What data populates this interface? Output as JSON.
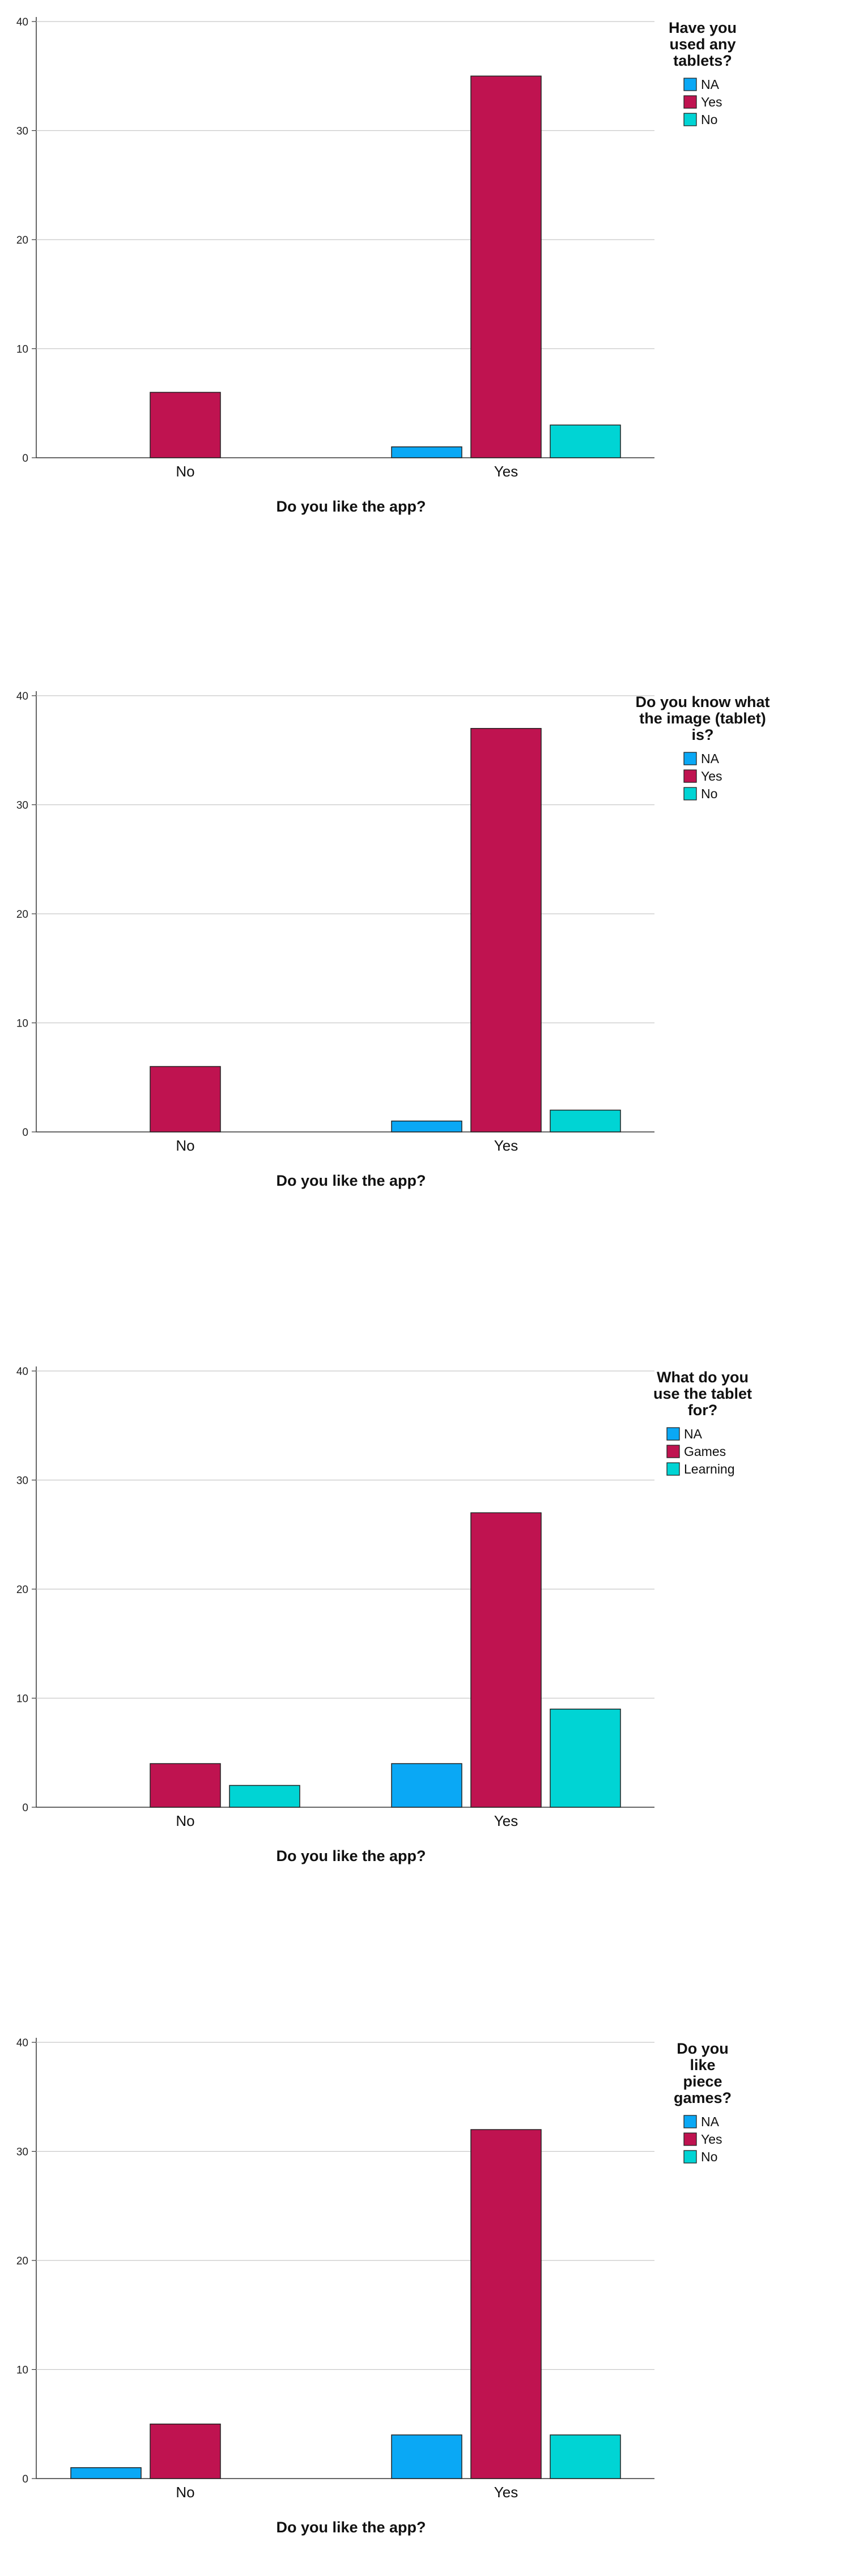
{
  "chart_data": [
    {
      "type": "bar",
      "xlabel": "Do you like the app?",
      "categories": [
        "No",
        "Yes"
      ],
      "ylim": [
        0,
        40
      ],
      "yticks": [
        0,
        10,
        20,
        30,
        40
      ],
      "grid": true,
      "legend_position": "top-right",
      "legend_title_lines": [
        "Have you",
        "used any",
        "tablets?"
      ],
      "series": [
        {
          "name": "NA",
          "color": "#0aa8f5",
          "values": [
            0,
            1
          ]
        },
        {
          "name": "Yes",
          "color": "#bf1350",
          "values": [
            6,
            35
          ]
        },
        {
          "name": "No",
          "color": "#00d4d4",
          "values": [
            0,
            3
          ]
        }
      ]
    },
    {
      "type": "bar",
      "xlabel": "Do you like the app?",
      "categories": [
        "No",
        "Yes"
      ],
      "ylim": [
        0,
        40
      ],
      "yticks": [
        0,
        10,
        20,
        30,
        40
      ],
      "grid": true,
      "legend_position": "top-right",
      "legend_title_lines": [
        "Do you know what",
        "the image (tablet)",
        "is?"
      ],
      "series": [
        {
          "name": "NA",
          "color": "#0aa8f5",
          "values": [
            0,
            1
          ]
        },
        {
          "name": "Yes",
          "color": "#bf1350",
          "values": [
            6,
            37
          ]
        },
        {
          "name": "No",
          "color": "#00d4d4",
          "values": [
            0,
            2
          ]
        }
      ]
    },
    {
      "type": "bar",
      "xlabel": "Do you like the app?",
      "categories": [
        "No",
        "Yes"
      ],
      "ylim": [
        0,
        40
      ],
      "yticks": [
        0,
        10,
        20,
        30,
        40
      ],
      "grid": true,
      "legend_position": "top-right",
      "legend_title_lines": [
        "What do you",
        "use the tablet",
        "for?"
      ],
      "series": [
        {
          "name": "NA",
          "color": "#0aa8f5",
          "values": [
            0,
            4
          ]
        },
        {
          "name": "Games",
          "color": "#bf1350",
          "values": [
            4,
            27
          ]
        },
        {
          "name": "Learning",
          "color": "#00d4d4",
          "values": [
            2,
            9
          ]
        }
      ]
    },
    {
      "type": "bar",
      "xlabel": "Do you like the app?",
      "categories": [
        "No",
        "Yes"
      ],
      "ylim": [
        0,
        40
      ],
      "yticks": [
        0,
        10,
        20,
        30,
        40
      ],
      "grid": true,
      "legend_position": "top-right",
      "legend_title_lines": [
        "Do you",
        "like",
        "piece",
        "games?"
      ],
      "series": [
        {
          "name": "NA",
          "color": "#0aa8f5",
          "values": [
            1,
            4
          ]
        },
        {
          "name": "Yes",
          "color": "#bf1350",
          "values": [
            5,
            32
          ]
        },
        {
          "name": "No",
          "color": "#00d4d4",
          "values": [
            0,
            4
          ]
        }
      ]
    }
  ]
}
